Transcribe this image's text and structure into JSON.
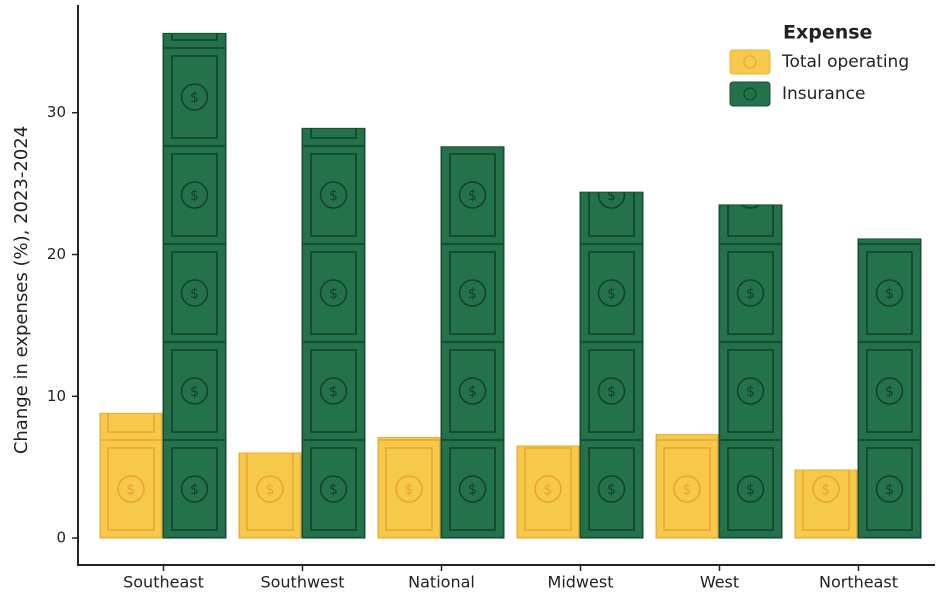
{
  "chart_data": {
    "type": "bar",
    "y_label": "Change in expenses (%), 2023-2024",
    "legend_title": "Expense",
    "categories": [
      "Southeast",
      "Southwest",
      "National",
      "Midwest",
      "West",
      "Northeast"
    ],
    "series": [
      {
        "name": "Total operating",
        "color": "#f7c948",
        "values": [
          8.8,
          6.0,
          7.1,
          6.5,
          7.3,
          4.8
        ]
      },
      {
        "name": "Insurance",
        "color": "#23724a",
        "values": [
          35.6,
          28.9,
          27.6,
          24.4,
          23.5,
          21.1
        ]
      }
    ],
    "ylim": [
      -1.9,
      37.6
    ],
    "yticks": [
      0,
      10,
      20,
      30
    ],
    "legend": "top-right"
  }
}
